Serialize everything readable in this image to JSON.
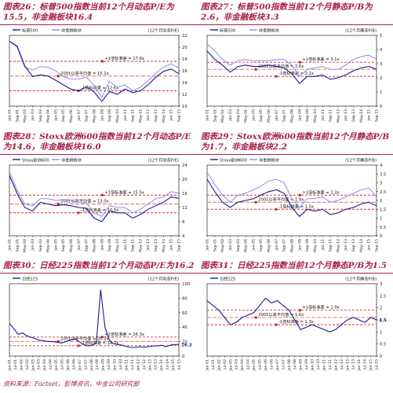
{
  "source": "资料来源：Factset，彭博资讯，中金公司研究部",
  "colors": {
    "caption": "#a8204a",
    "index_line": "#1b1b8f",
    "nonfin_line": "#8c8cf0",
    "band_line": "#d23232",
    "avg_line": "#e07060",
    "bullet": "#c81e1e"
  },
  "x_ticks": [
    "Jan-01",
    "Sep-01",
    "May-02",
    "Jan-03",
    "Sep-03",
    "May-04",
    "Jan-05",
    "Sep-05",
    "May-06",
    "Jan-07",
    "Sep-07",
    "May-08",
    "Jan-09",
    "Sep-09",
    "May-10",
    "Jan-11",
    "Sep-11",
    "May-12",
    "Jan-13",
    "Sep-13",
    "May-14",
    "Jan-15",
    "Sep-15"
  ],
  "x_ticks_alt": [
    "Jan-01",
    "Jul-01",
    "Jan-02",
    "Jul-02",
    "Jan-03",
    "Jul-03",
    "Jan-04",
    "Jul-04",
    "Jan-05",
    "Jul-05",
    "Jan-06",
    "Jul-06",
    "Jan-07",
    "Jul-07",
    "Jan-08",
    "Jul-08",
    "Jan-09",
    "Jul-09",
    "Jan-10",
    "Jul-10",
    "Jan-11",
    "Jul-11",
    "Jan-12",
    "Jul-12",
    "Jan-13",
    "Jul-13",
    "Jan-14",
    "Jul-14",
    "Jan-15",
    "Jul-15"
  ],
  "chart_data": [
    {
      "id": "fig26",
      "type": "line",
      "title": "图表26：标普500指数当前12个月动态P/E为15.5，非金融板块16.4",
      "legend": [
        "标普500",
        "非金融板块"
      ],
      "axis_note": "(12个月动态P/E)",
      "ylim": [
        10,
        22
      ],
      "yticks": [
        10,
        12,
        14,
        16,
        18,
        20,
        22
      ],
      "bands": [
        {
          "label": "+1倍标准差 = 17.6x",
          "value": 17.6
        },
        {
          "label": "2001以来平均值 = 15.1x",
          "value": 15.1
        },
        {
          "label": "-1倍标准差 = 12.6x",
          "value": 12.6
        }
      ],
      "series": [
        {
          "name": "标普500",
          "values": [
            21.0,
            20.2,
            16.8,
            15.0,
            15.3,
            15.1,
            14.4,
            13.6,
            12.9,
            12.6,
            13.3,
            12.4,
            10.8,
            12.5,
            12.0,
            12.9,
            12.3,
            12.6,
            13.6,
            14.9,
            15.9,
            16.3,
            15.5
          ]
        },
        {
          "name": "非金融板块",
          "values": [
            21.0,
            20.0,
            16.6,
            16.1,
            16.7,
            16.6,
            16.0,
            15.0,
            14.6,
            14.6,
            14.9,
            13.5,
            11.5,
            14.2,
            13.2,
            13.6,
            12.6,
            13.2,
            14.3,
            15.6,
            16.6,
            17.2,
            16.4
          ]
        }
      ]
    },
    {
      "id": "fig27",
      "type": "line",
      "title": "图表27：标普500指数当前12个月静态P/B为2.6，非金融板块3.3",
      "legend": [
        "标普500",
        "非金融板块"
      ],
      "axis_note": "(12个月静态P/B)",
      "ylim": [
        0.0,
        5.0
      ],
      "yticks": [
        0.0,
        1.0,
        2.0,
        3.0,
        4.0,
        5.0
      ],
      "bands": [
        {
          "label": "+1倍标准差 = 3.1x",
          "value": 3.1
        },
        {
          "label": "2001以来平均值 = 2.6x",
          "value": 2.6
        },
        {
          "label": "-1倍标准差 = 2.1x",
          "value": 2.1
        }
      ],
      "series": [
        {
          "name": "标普500",
          "values": [
            3.9,
            3.3,
            2.9,
            2.4,
            2.8,
            2.9,
            2.8,
            2.8,
            2.9,
            2.8,
            2.7,
            2.3,
            1.6,
            2.1,
            2.1,
            2.2,
            1.9,
            2.0,
            2.2,
            2.5,
            2.7,
            2.8,
            2.6
          ]
        },
        {
          "name": "非金融板块",
          "values": [
            4.4,
            3.9,
            3.3,
            2.9,
            3.2,
            3.3,
            3.2,
            3.2,
            3.2,
            3.3,
            3.3,
            2.9,
            2.1,
            2.6,
            2.7,
            2.8,
            2.6,
            2.6,
            2.9,
            3.3,
            3.5,
            3.6,
            3.3
          ]
        }
      ]
    },
    {
      "id": "fig28",
      "type": "line",
      "title": "图表28：Stoxx欧洲600指数当前12个月动态P/E为14.6，非金融板块16.0",
      "legend": [
        "Stoxx欧洲600",
        "非金融板块"
      ],
      "axis_note": "(12个月动态P/E)",
      "ylim": [
        4,
        24
      ],
      "yticks": [
        4,
        8,
        12,
        16,
        20,
        24
      ],
      "bands": [
        {
          "label": "+1倍标准差 = 15.5x",
          "value": 15.5
        },
        {
          "label": "2001以来平均值 = 13.0x",
          "value": 13.0
        },
        {
          "label": "-1倍标准差 = 10.5x",
          "value": 10.5
        }
      ],
      "series": [
        {
          "name": "Stoxx欧洲600",
          "values": [
            21.0,
            16.0,
            12.0,
            11.0,
            13.5,
            13.0,
            12.5,
            12.8,
            12.5,
            12.0,
            11.8,
            9.0,
            8.0,
            11.0,
            10.5,
            10.5,
            9.0,
            10.0,
            11.5,
            12.5,
            13.5,
            15.0,
            14.6
          ]
        },
        {
          "name": "非金融板块",
          "values": [
            22.0,
            17.0,
            13.0,
            12.5,
            14.5,
            14.5,
            14.0,
            14.2,
            14.0,
            13.5,
            13.2,
            10.5,
            9.5,
            12.5,
            12.0,
            12.0,
            10.5,
            11.5,
            13.0,
            14.5,
            15.0,
            16.5,
            16.0
          ]
        }
      ]
    },
    {
      "id": "fig29",
      "type": "line",
      "title": "图表29：Stoxx欧洲600指数当前12个月静态P/B为1.7，非金融板块2.2",
      "legend": [
        "Stoxx欧洲600",
        "非金融板块"
      ],
      "axis_note": "(12个月静态P/B)",
      "ylim": [
        0.0,
        4.0
      ],
      "yticks": [
        0.0,
        0.5,
        1.0,
        1.5,
        2.0,
        2.5,
        3.0,
        3.5,
        4.0
      ],
      "bands": [
        {
          "label": "+1倍标准差 = 2.3x",
          "value": 2.3
        },
        {
          "label": "2001以来平均值 = 1.9x",
          "value": 1.9
        },
        {
          "label": "-1倍标准差 = 1.5x",
          "value": 1.5
        }
      ],
      "series": [
        {
          "name": "Stoxx欧洲600",
          "values": [
            3.2,
            2.5,
            1.9,
            1.6,
            1.9,
            2.0,
            2.1,
            2.3,
            2.5,
            2.6,
            2.4,
            1.6,
            1.1,
            1.5,
            1.4,
            1.5,
            1.2,
            1.3,
            1.5,
            1.6,
            1.8,
            1.9,
            1.7
          ]
        },
        {
          "name": "非金融板块",
          "values": [
            3.6,
            2.9,
            2.3,
            1.9,
            2.3,
            2.4,
            2.6,
            2.8,
            3.1,
            3.2,
            3.0,
            2.1,
            1.6,
            2.1,
            2.1,
            2.2,
            1.9,
            2.0,
            2.2,
            2.4,
            2.6,
            2.7,
            2.2
          ]
        }
      ]
    },
    {
      "id": "fig30",
      "type": "line",
      "title": "图表30：日经225指数当前12个月动态P/E为16.2",
      "legend": [
        "日经225"
      ],
      "axis_note": "(12个月动态P/E)",
      "ylim": [
        0,
        100
      ],
      "yticks": [
        0,
        20,
        40,
        60,
        80,
        100
      ],
      "bands": [
        {
          "label": "+1倍标准差 = 26.3x",
          "value": 26.3
        },
        {
          "label": "2001以来平均值 = 20.3x",
          "value": 20.3
        },
        {
          "label": "-1倍标准差 = 14.3x",
          "value": 14.3
        }
      ],
      "end_label": "16.2",
      "series": [
        {
          "name": "日经225",
          "values": [
            45,
            38,
            30,
            32,
            28,
            26,
            24,
            22,
            21,
            20,
            20,
            19,
            18,
            20,
            22,
            24,
            20,
            16,
            14,
            15,
            18,
            92,
            40,
            22,
            17,
            16,
            15,
            13,
            12,
            12,
            13,
            12,
            13,
            14,
            14,
            15,
            13,
            15,
            16,
            16
          ]
        }
      ]
    },
    {
      "id": "fig31",
      "type": "line",
      "title": "图表31：日经225指数当前12个月静态P/B为1.5",
      "legend": [
        "日经225"
      ],
      "axis_note": "(12个月静态P/B)",
      "ylim": [
        0.0,
        3.0
      ],
      "yticks": [
        0.0,
        0.5,
        1.0,
        1.5,
        2.0,
        2.5,
        3.0
      ],
      "bands": [
        {
          "label": "+1倍标准差 = 1.9x",
          "value": 1.9
        },
        {
          "label": "2001以来平均值 = 1.6x",
          "value": 1.6
        },
        {
          "label": "-1倍标准差 = 1.3x",
          "value": 1.3
        }
      ],
      "end_label": "1.5",
      "series": [
        {
          "name": "日经225",
          "values": [
            2.3,
            2.1,
            1.9,
            1.6,
            1.3,
            1.4,
            1.6,
            1.7,
            1.8,
            2.1,
            2.4,
            2.2,
            2.3,
            2.1,
            1.9,
            1.5,
            1.1,
            1.2,
            1.3,
            1.2,
            1.1,
            1.0,
            1.1,
            1.3,
            1.5,
            1.6,
            1.5,
            1.4,
            1.6,
            1.5
          ]
        }
      ]
    }
  ]
}
